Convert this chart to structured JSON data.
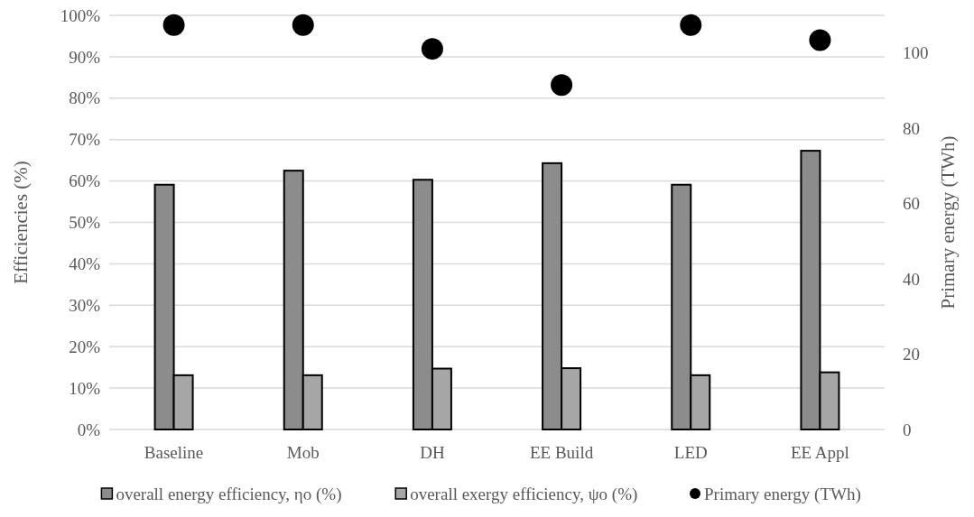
{
  "chart_data": {
    "type": "bar",
    "categories": [
      "Baseline",
      "Mob",
      "DH",
      "EE Build",
      "LED",
      "EE Appl"
    ],
    "series": [
      {
        "name": "overall energy efficiency, ηo (%)",
        "color": "#8c8c8c",
        "values": [
          59.1,
          62.5,
          60.3,
          64.3,
          59.1,
          67.3
        ]
      },
      {
        "name": "overall exergy efficiency, ψo (%)",
        "color": "#a6a6a6",
        "values": [
          13.1,
          13.1,
          14.7,
          14.8,
          13.1,
          13.8
        ]
      },
      {
        "name": "Primary energy  (TWh)",
        "type": "scatter",
        "axis": "y2",
        "color": "#000000",
        "values": [
          107.4,
          107.4,
          101.1,
          91.5,
          107.4,
          103.4
        ]
      }
    ],
    "ylabel": "Efficiencies (%)",
    "y2label": "Primary energy (TWh)",
    "ylim": [
      0,
      100
    ],
    "yticks": [
      {
        "value": 0,
        "label": "0%"
      },
      {
        "value": 10,
        "label": "10%"
      },
      {
        "value": 20,
        "label": "20%"
      },
      {
        "value": 30,
        "label": "30%"
      },
      {
        "value": 40,
        "label": "40%"
      },
      {
        "value": 50,
        "label": "50%"
      },
      {
        "value": 60,
        "label": "60%"
      },
      {
        "value": 70,
        "label": "70%"
      },
      {
        "value": 80,
        "label": "80%"
      },
      {
        "value": 90,
        "label": "90%"
      },
      {
        "value": 100,
        "label": "100%"
      }
    ],
    "y2lim": [
      0,
      110
    ],
    "y2ticks": [
      0,
      20,
      40,
      60,
      80,
      100
    ],
    "grid": "y",
    "legend": "bottom",
    "marker": "circle"
  }
}
